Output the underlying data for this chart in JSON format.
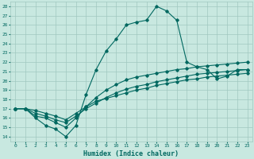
{
  "title": "",
  "xlabel": "Humidex (Indice chaleur)",
  "ylabel": "",
  "xlim": [
    -0.5,
    23.5
  ],
  "ylim": [
    13.5,
    28.5
  ],
  "xticks": [
    0,
    1,
    2,
    3,
    4,
    5,
    6,
    7,
    8,
    9,
    10,
    11,
    12,
    13,
    14,
    15,
    16,
    17,
    18,
    19,
    20,
    21,
    22,
    23
  ],
  "yticks": [
    14,
    15,
    16,
    17,
    18,
    19,
    20,
    21,
    22,
    23,
    24,
    25,
    26,
    27,
    28
  ],
  "background_color": "#c8e8e0",
  "grid_color": "#a0c8c0",
  "line_color": "#006860",
  "line1_x": [
    0,
    1,
    2,
    3,
    4,
    5,
    6,
    7,
    8,
    9,
    10,
    11,
    12,
    13,
    14,
    15,
    16,
    17,
    18,
    19,
    20,
    21,
    22,
    23
  ],
  "line1_y": [
    17.0,
    17.0,
    16.0,
    15.2,
    14.8,
    14.0,
    15.2,
    18.5,
    21.2,
    23.2,
    24.5,
    26.0,
    26.3,
    26.5,
    28.0,
    27.5,
    26.5,
    22.0,
    21.5,
    21.2,
    20.2,
    20.5,
    21.2,
    21.2
  ],
  "line2_x": [
    0,
    1,
    2,
    3,
    4,
    5,
    6,
    7,
    8,
    9,
    10,
    11,
    12,
    13,
    14,
    15,
    16,
    17,
    18,
    19,
    20,
    21,
    22,
    23
  ],
  "line2_y": [
    17.0,
    17.0,
    16.2,
    16.0,
    15.5,
    15.0,
    16.0,
    17.2,
    18.2,
    19.0,
    19.6,
    20.1,
    20.4,
    20.6,
    20.8,
    21.0,
    21.2,
    21.3,
    21.5,
    21.6,
    21.7,
    21.8,
    21.9,
    22.0
  ],
  "line3_x": [
    0,
    1,
    2,
    3,
    4,
    5,
    6,
    7,
    8,
    9,
    10,
    11,
    12,
    13,
    14,
    15,
    16,
    17,
    18,
    19,
    20,
    21,
    22,
    23
  ],
  "line3_y": [
    17.0,
    17.0,
    16.5,
    16.2,
    15.8,
    15.5,
    16.2,
    17.0,
    17.6,
    18.2,
    18.7,
    19.1,
    19.4,
    19.6,
    19.9,
    20.1,
    20.3,
    20.5,
    20.7,
    20.8,
    20.9,
    21.0,
    21.1,
    21.2
  ],
  "line4_x": [
    0,
    1,
    2,
    3,
    4,
    5,
    6,
    7,
    8,
    9,
    10,
    11,
    12,
    13,
    14,
    15,
    16,
    17,
    18,
    19,
    20,
    21,
    22,
    23
  ],
  "line4_y": [
    17.0,
    17.0,
    16.8,
    16.5,
    16.2,
    15.8,
    16.5,
    17.2,
    17.8,
    18.1,
    18.4,
    18.7,
    19.0,
    19.2,
    19.5,
    19.7,
    19.9,
    20.1,
    20.2,
    20.4,
    20.5,
    20.6,
    20.7,
    20.8
  ]
}
